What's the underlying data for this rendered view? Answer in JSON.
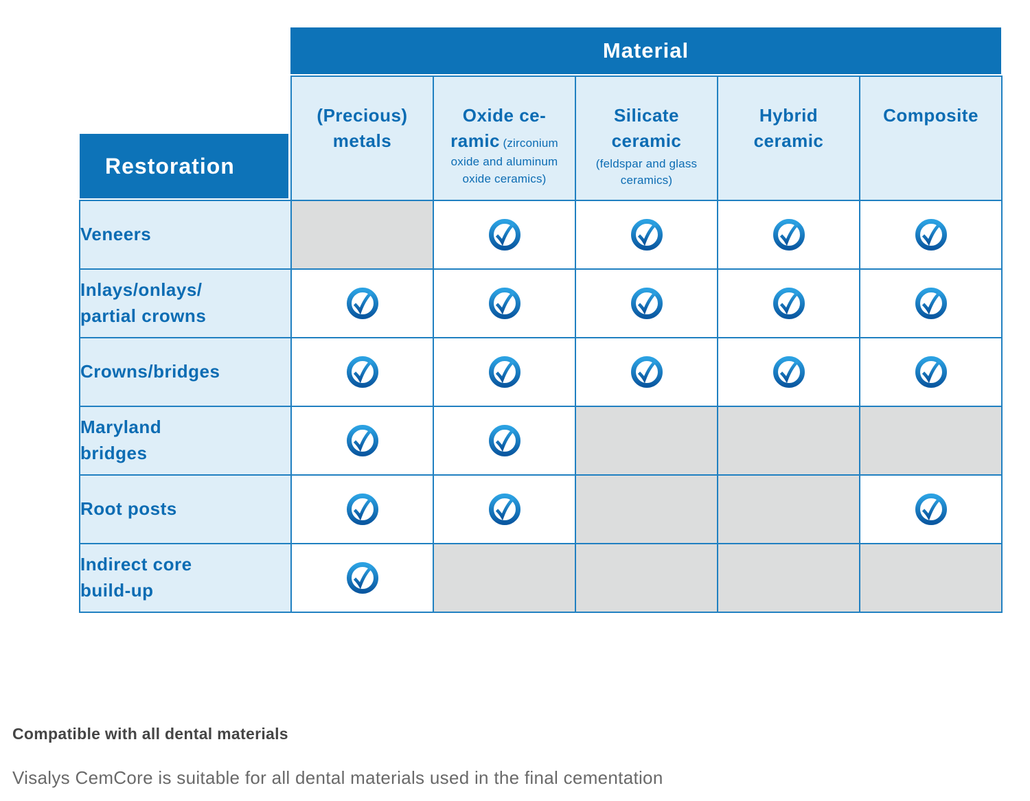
{
  "table": {
    "material_label": "Material",
    "restoration_label": "Restoration",
    "columns": [
      {
        "id": "precious-metals",
        "title": "(Precious)\nmetals",
        "subtitle": "",
        "sub_block": false
      },
      {
        "id": "oxide-ceramic",
        "title": "Oxide ce-\nramic",
        "subtitle": "(zirconium oxide and aluminum oxide ceramics)",
        "sub_block": false
      },
      {
        "id": "silicate-ceramic",
        "title": "Silicate\nceramic",
        "subtitle": "(feldspar and glass ceramics)",
        "sub_block": true
      },
      {
        "id": "hybrid-ceramic",
        "title": "Hybrid\nceramic",
        "subtitle": "",
        "sub_block": false
      },
      {
        "id": "composite",
        "title": "Composite",
        "subtitle": "",
        "sub_block": false
      }
    ],
    "rows": [
      {
        "label": "Veneers",
        "cells": [
          "none",
          "check",
          "check",
          "check",
          "check"
        ]
      },
      {
        "label": "Inlays/onlays/\npartial crowns",
        "cells": [
          "check",
          "check",
          "check",
          "check",
          "check"
        ]
      },
      {
        "label": "Crowns/bridges",
        "cells": [
          "check",
          "check",
          "check",
          "check",
          "check"
        ]
      },
      {
        "label": "Maryland\nbridges",
        "cells": [
          "check",
          "check",
          "none",
          "none",
          "none"
        ]
      },
      {
        "label": "Root posts",
        "cells": [
          "check",
          "check",
          "none",
          "none",
          "check"
        ]
      },
      {
        "label": "Indirect core\nbuild-up",
        "cells": [
          "check",
          "none",
          "none",
          "none",
          "none"
        ]
      }
    ]
  },
  "footer": {
    "bold_note": "Compatible with all dental materials",
    "light_note": "Visalys CemCore is suitable for all dental materials used in the final cementation"
  },
  "colors": {
    "header_blue": "#0d73b8",
    "light_blue": "#deeef8",
    "border_blue": "#2080c1",
    "text_blue": "#0c6cb3",
    "blocked_gray": "#dcdddd",
    "check_gradient_top": "#2ba1e2",
    "check_gradient_bottom": "#0a58a1"
  },
  "icons": {
    "check": "check-circle-icon"
  }
}
